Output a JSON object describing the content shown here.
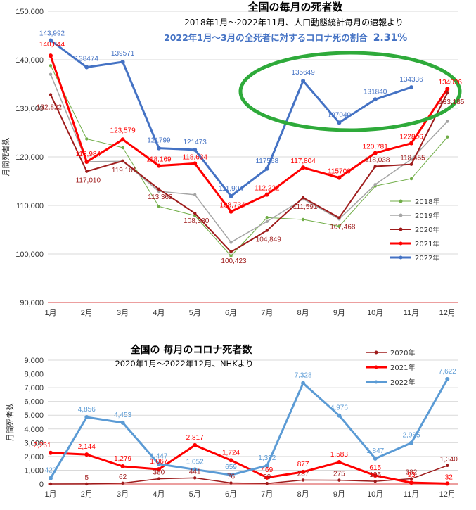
{
  "chart_data": [
    {
      "type": "line",
      "title": "全国の毎月の死者数",
      "subtitle": "2018年1月～2022年11月、人口動態統計毎月の速報より",
      "note": "2022年1月～3月の全死者に対するコロナ死の割合",
      "note_value": "2.31%",
      "note_color": "#4472c4",
      "ylabel": "月間死者数",
      "ylim": [
        90000,
        150000
      ],
      "yticks": [
        "90,000",
        "100,000",
        "110,000",
        "120,000",
        "130,000",
        "140,000",
        "150,000"
      ],
      "yticks_values": [
        90000,
        100000,
        110000,
        120000,
        130000,
        140000,
        150000
      ],
      "categories": [
        "1月",
        "2月",
        "3月",
        "4月",
        "5月",
        "6月",
        "7月",
        "8月",
        "9月",
        "10月",
        "11月",
        "12月"
      ],
      "highlight": "2022年8月～11月（緑の楕円）",
      "series": [
        {
          "name": "2018年",
          "color": "#70ad47",
          "width": 1,
          "values": [
            138800,
            123700,
            121900,
            109800,
            107900,
            99600,
            107500,
            107100,
            105700,
            114000,
            115500,
            124100
          ],
          "labels": [
            null,
            null,
            null,
            null,
            null,
            null,
            null,
            null,
            null,
            null,
            null,
            null
          ]
        },
        {
          "name": "2019年",
          "color": "#a5a5a5",
          "width": 1.5,
          "values": [
            137000,
            119000,
            119100,
            112900,
            112200,
            102400,
            106700,
            111300,
            107200,
            114300,
            119500,
            127300
          ],
          "labels": [
            null,
            null,
            null,
            null,
            null,
            null,
            null,
            null,
            null,
            null,
            null,
            null
          ]
        },
        {
          "name": "2020年",
          "color": "#9e1b1b",
          "width": 2,
          "values": [
            132822,
            117010,
            119161,
            113362,
            108380,
            100423,
            104849,
            111591,
            107468,
            118038,
            118455,
            133185
          ],
          "labels": [
            "132,822",
            "117,010",
            "119,161",
            "113,362",
            "108,380",
            "100,423",
            "104,849",
            "111,591",
            "107,468",
            "118,038",
            "118,455",
            "133,185"
          ]
        },
        {
          "name": "2021年",
          "color": "#ff0000",
          "width": 3,
          "values": [
            140844,
            118984,
            123579,
            118169,
            118634,
            108734,
            112222,
            117804,
            115706,
            120781,
            122806,
            134026
          ],
          "labels": [
            "140,844",
            "118,984",
            "123,579",
            "118,169",
            "118,634",
            "108,734",
            "112,222",
            "117,804",
            "115706",
            "120,781",
            "122806",
            "134026"
          ]
        },
        {
          "name": "2022年",
          "color": "#4472c4",
          "width": 3,
          "values": [
            143992,
            138474,
            139571,
            121799,
            121473,
            111904,
            117568,
            135649,
            127040,
            131840,
            134336,
            null
          ],
          "labels": [
            "143,992",
            "138474",
            "139571",
            "121799",
            "121473",
            "111,904",
            "117568",
            "135649",
            "127040",
            "131840",
            "134336",
            null
          ]
        }
      ]
    },
    {
      "type": "line",
      "title": "全国の 毎月のコロナ死者数",
      "subtitle": "2020年1月～2022年12月、NHKより",
      "ylabel": "月間死者数",
      "ylim": [
        0,
        9000
      ],
      "yticks": [
        "0",
        "1,000",
        "2,000",
        "3,000",
        "4,000",
        "5,000",
        "6,000",
        "7,000",
        "8,000",
        "9,000"
      ],
      "yticks_values": [
        0,
        1000,
        2000,
        3000,
        4000,
        5000,
        6000,
        7000,
        8000,
        9000
      ],
      "categories": [
        "1月",
        "2月",
        "3月",
        "4月",
        "5月",
        "6月",
        "7月",
        "8月",
        "9月",
        "10月",
        "11月",
        "12月"
      ],
      "series": [
        {
          "name": "2020年",
          "color": "#9e1b1b",
          "width": 1.5,
          "values": [
            1,
            5,
            62,
            380,
            441,
            76,
            39,
            287,
            275,
            195,
            382,
            1340
          ],
          "labels": [
            null,
            "5",
            "62",
            "380",
            "441",
            "76",
            "39",
            "287",
            "275",
            "195",
            "382",
            "1,340"
          ]
        },
        {
          "name": "2021年",
          "color": "#ff0000",
          "width": 3,
          "values": [
            2261,
            2144,
            1279,
            1067,
            2817,
            1724,
            469,
            877,
            1583,
            615,
            93,
            32
          ],
          "labels": [
            "2,261",
            "2,144",
            "1,279",
            "1,067",
            "2,817",
            "1,724",
            "469",
            "877",
            "1,583",
            "615",
            "93",
            "32"
          ]
        },
        {
          "name": "2022年",
          "color": "#5b9bd5",
          "width": 3,
          "values": [
            422,
            4856,
            4453,
            1447,
            1052,
            659,
            1332,
            7328,
            4976,
            1847,
            2985,
            7622
          ],
          "labels": [
            "422",
            "4,856",
            "4,453",
            "1,447",
            "1,052",
            "659",
            "1,332",
            "7,328",
            "4,976",
            "1,847",
            "2,985",
            "7,622"
          ]
        }
      ]
    }
  ]
}
